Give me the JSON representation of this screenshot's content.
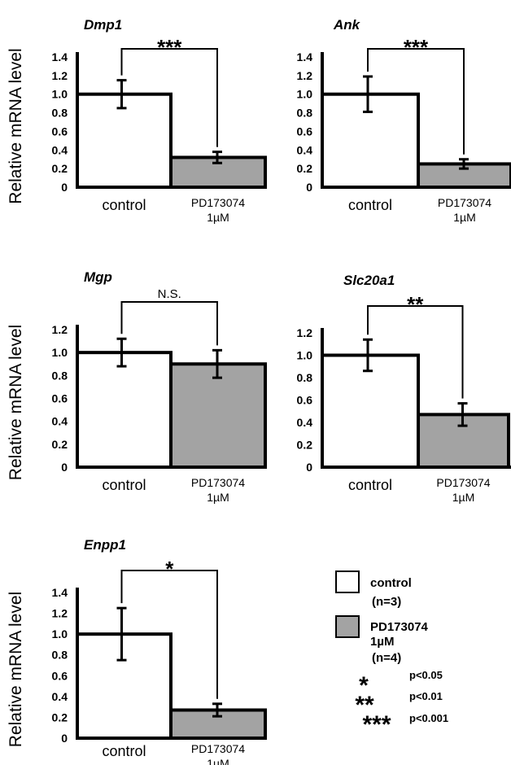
{
  "figure": {
    "ylabel": "Relative mRNA level",
    "categories": [
      "control",
      "PD173074",
      "1µM"
    ]
  },
  "colors": {
    "control": "#ffffff",
    "treated": "#a3a3a3",
    "axis": "#000000"
  },
  "chart_data": [
    {
      "type": "bar",
      "title": "Dmp1",
      "ylabel": "Relative mRNA level",
      "categories": [
        "control",
        "PD173074 1µM"
      ],
      "values": [
        1.0,
        0.32
      ],
      "errors": [
        0.15,
        0.06
      ],
      "ylim": [
        0,
        1.4
      ],
      "yticks": [
        "0",
        "0.2",
        "0.4",
        "0.6",
        "0.8",
        "1.0",
        "1.2",
        "1.4"
      ],
      "significance": "***"
    },
    {
      "type": "bar",
      "title": "Ank",
      "ylabel": "",
      "categories": [
        "control",
        "PD173074 1µM"
      ],
      "values": [
        1.0,
        0.25
      ],
      "errors": [
        0.19,
        0.05
      ],
      "ylim": [
        0,
        1.4
      ],
      "yticks": [
        "0",
        "0.2",
        "0.4",
        "0.6",
        "0.8",
        "1.0",
        "1.2",
        "1.4"
      ],
      "significance": "***"
    },
    {
      "type": "bar",
      "title": "Mgp",
      "ylabel": "Relative mRNA level",
      "categories": [
        "control",
        "PD173074 1µM"
      ],
      "values": [
        1.0,
        0.9
      ],
      "errors": [
        0.12,
        0.12
      ],
      "ylim": [
        0,
        1.2
      ],
      "yticks": [
        "0",
        "0.2",
        "0.4",
        "0.6",
        "0.8",
        "1.0",
        "1.2"
      ],
      "significance": "N.S."
    },
    {
      "type": "bar",
      "title": "Slc20a1",
      "ylabel": "",
      "categories": [
        "control",
        "PD173074 1µM"
      ],
      "values": [
        1.0,
        0.47
      ],
      "errors": [
        0.14,
        0.1
      ],
      "ylim": [
        0,
        1.2
      ],
      "yticks": [
        "0",
        "0.2",
        "0.4",
        "0.6",
        "0.8",
        "1.0",
        "1.2"
      ],
      "significance": "**"
    },
    {
      "type": "bar",
      "title": "Enpp1",
      "ylabel": "Relative mRNA level",
      "categories": [
        "control",
        "PD173074 1µM"
      ],
      "values": [
        1.0,
        0.27
      ],
      "errors": [
        0.25,
        0.06
      ],
      "ylim": [
        0,
        1.4
      ],
      "yticks": [
        "0",
        "0.2",
        "0.4",
        "0.6",
        "0.8",
        "1.0",
        "1.2",
        "1.4"
      ],
      "significance": "*"
    }
  ],
  "legend": {
    "control_label": "control",
    "control_n": "(n=3)",
    "treated_label_1": "PD173074",
    "treated_label_2": "1µM",
    "treated_n": "(n=4)",
    "sig": [
      {
        "stars": "*",
        "p": "p<0.05"
      },
      {
        "stars": "**",
        "p": "p<0.01"
      },
      {
        "stars": "***",
        "p": "p<0.001"
      }
    ]
  }
}
